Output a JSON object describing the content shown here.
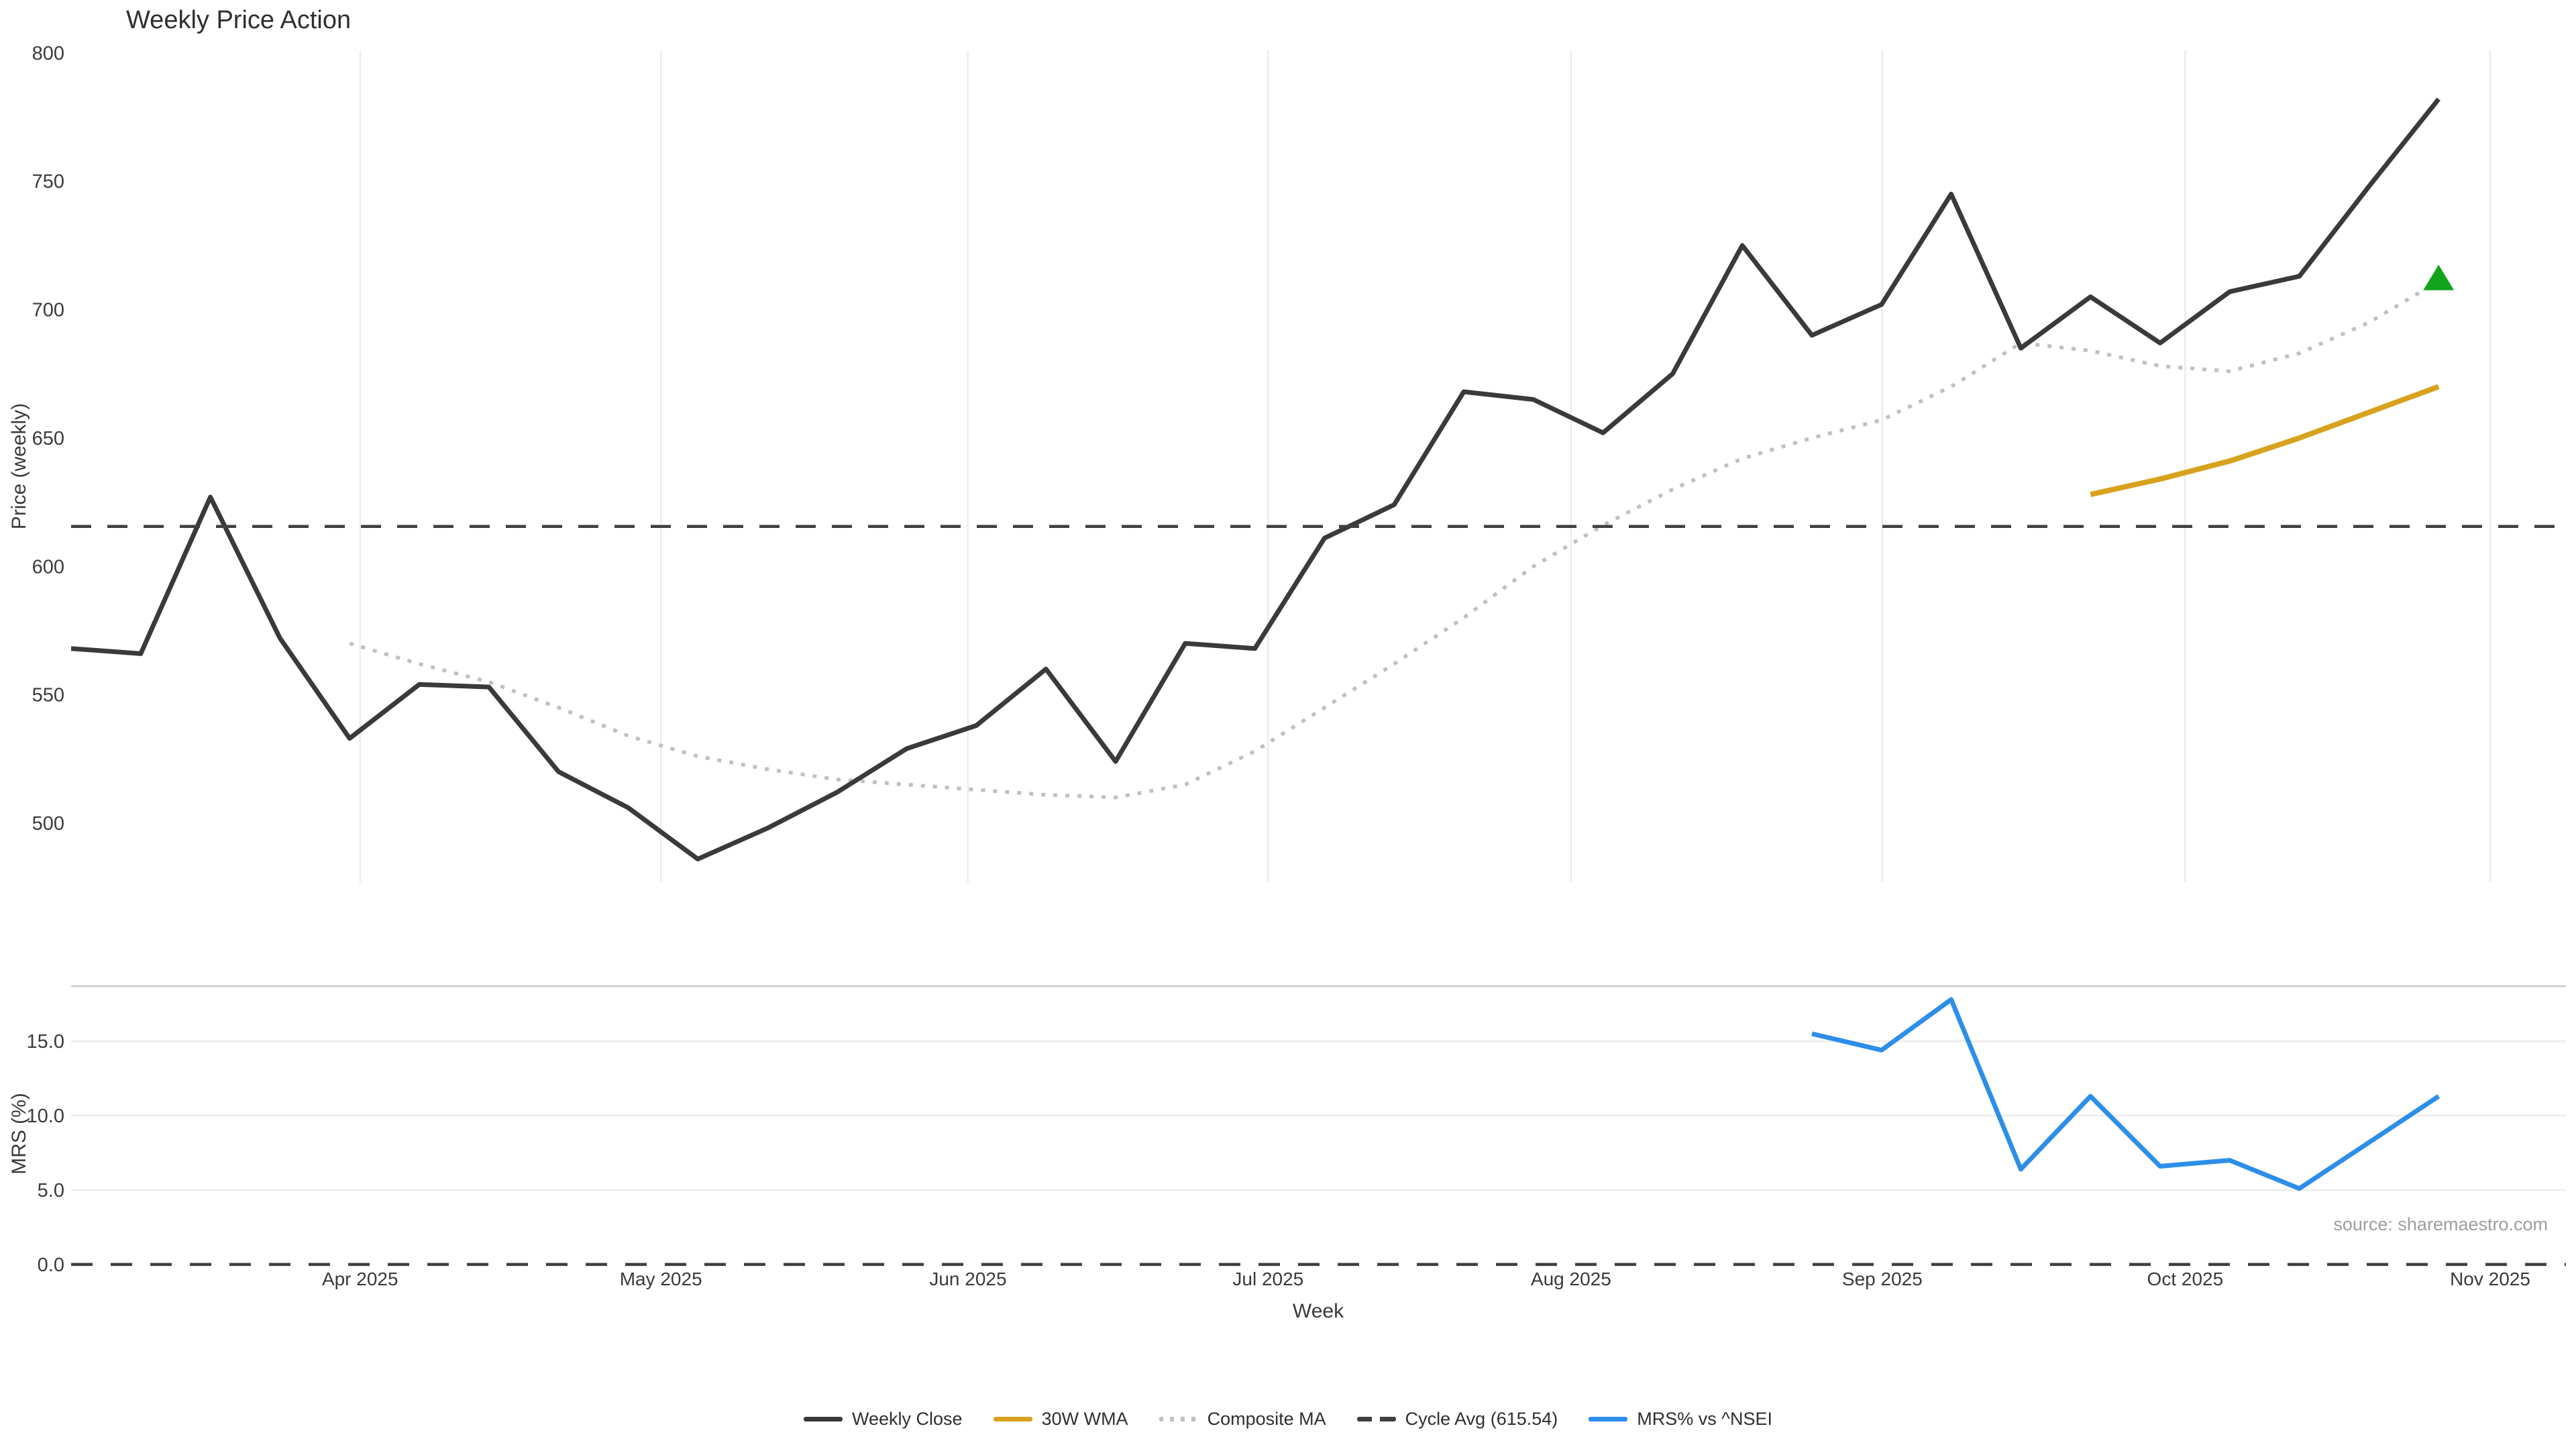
{
  "title": "Weekly Price Action",
  "source": "source: sharemaestro.com",
  "colors": {
    "weekly_close": "#3a3a3a",
    "wma": "#d8a21e",
    "composite": "#c0c0c0",
    "cycle_avg": "#3f3f3f",
    "mrs": "#2d8ee8",
    "marker": "#12a41c",
    "grid": "#ececec",
    "panel_border": "#c9c9c9",
    "tick_text": "#3a3a3a",
    "source_text": "#9e9e9e"
  },
  "legend": [
    {
      "label": "Weekly Close",
      "style": "solid",
      "color_key": "weekly_close"
    },
    {
      "label": "30W WMA",
      "style": "solid",
      "color_key": "wma"
    },
    {
      "label": "Composite MA",
      "style": "dotted",
      "color_key": "composite"
    },
    {
      "label": "Cycle Avg (615.54)",
      "style": "dashed",
      "color_key": "cycle_avg"
    },
    {
      "label": "MRS% vs ^NSEI",
      "style": "solid",
      "color_key": "mrs"
    }
  ],
  "chart_data": [
    {
      "type": "line",
      "panel": "price",
      "title": "Weekly Price Action",
      "xlabel": "Week",
      "ylabel": "Price (weekly)",
      "grid": "vertical-only",
      "legend_position": "bottom-center",
      "ylim": [
        477,
        801
      ],
      "xlim_weeks": [
        0,
        35.8
      ],
      "y_ticks": [
        500,
        550,
        600,
        650,
        700,
        750,
        800
      ],
      "x_ticks": [
        {
          "label": "Apr 2025",
          "week": 4.15
        },
        {
          "label": "May 2025",
          "week": 8.47
        },
        {
          "label": "Jun 2025",
          "week": 12.88
        },
        {
          "label": "Jul 2025",
          "week": 17.19
        },
        {
          "label": "Aug 2025",
          "week": 21.54
        },
        {
          "label": "Sep 2025",
          "week": 26.01
        },
        {
          "label": "Oct 2025",
          "week": 30.36
        },
        {
          "label": "Nov 2025",
          "week": 34.74
        }
      ],
      "series": [
        {
          "name": "Weekly Close",
          "start_week": 0,
          "step_weeks": 1,
          "values": [
            568,
            566,
            627,
            572,
            533,
            554,
            553,
            520,
            506,
            486,
            498,
            512,
            529,
            538,
            560,
            524,
            570,
            568,
            611,
            624,
            668,
            665,
            652,
            675,
            725,
            690,
            702,
            745,
            685,
            705,
            687,
            707,
            713,
            748,
            782
          ]
        },
        {
          "name": "Composite MA",
          "start_week": 4,
          "step_weeks": 1,
          "values": [
            570,
            562,
            555,
            545,
            534,
            526,
            521,
            517,
            515,
            513,
            511,
            510,
            515,
            528,
            545,
            562,
            580,
            600,
            616,
            630,
            642,
            650,
            657,
            670,
            687,
            684,
            678,
            676,
            683,
            695,
            711
          ]
        },
        {
          "name": "30W WMA",
          "start_week": 29,
          "step_weeks": 1,
          "values": [
            628,
            634,
            641,
            650,
            660,
            670
          ]
        }
      ],
      "cycle_avg_value": 615.54,
      "marker": {
        "shape": "triangle-up",
        "week": 34,
        "value": 712
      }
    },
    {
      "type": "line",
      "panel": "mrs",
      "xlabel": "Week",
      "ylabel": "MRS (%)",
      "grid": "horizontal-only",
      "ylim": [
        -0.23,
        18.7
      ],
      "y_ticks": [
        {
          "label": "0.0",
          "value": 0
        },
        {
          "label": "5.0",
          "value": 5
        },
        {
          "label": "10.0",
          "value": 10
        },
        {
          "label": "15.0",
          "value": 15
        }
      ],
      "zero_line": {
        "style": "dashed",
        "value": 0
      },
      "series": [
        {
          "name": "MRS% vs ^NSEI",
          "start_week": 25,
          "step_weeks": 1,
          "values": [
            15.5,
            14.4,
            17.8,
            6.4,
            11.3,
            6.6,
            7.0,
            5.1,
            8.2,
            11.3
          ]
        }
      ]
    }
  ]
}
